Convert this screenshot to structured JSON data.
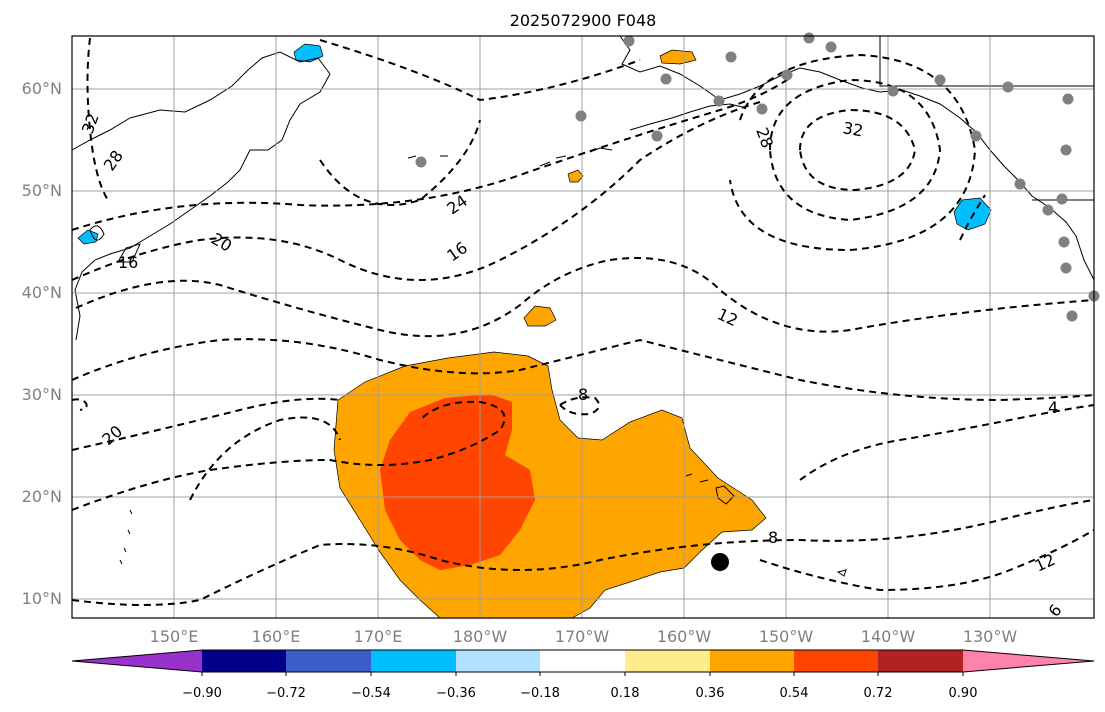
{
  "title": "2025072900 F048",
  "map": {
    "lat_ticks": [
      "10°N",
      "20°N",
      "30°N",
      "40°N",
      "50°N",
      "60°N"
    ],
    "lon_ticks": [
      "150°E",
      "160°E",
      "170°E",
      "180°W",
      "170°W",
      "160°W",
      "150°W",
      "140°W",
      "130°W"
    ],
    "contour_labels": [
      "32",
      "28",
      "24",
      "20",
      "16",
      "12",
      "8",
      "4",
      "16",
      "20",
      "12",
      "8",
      "28",
      "32",
      "12",
      "6"
    ],
    "colors": {
      "fill_orange": "#FFA500",
      "fill_red": "#FF4500",
      "fill_lightblue": "#00BFFF",
      "station_gray": "#808080"
    }
  },
  "colorbar": {
    "tick_labels": [
      "−0.90",
      "−0.72",
      "−0.54",
      "−0.36",
      "−0.18",
      "0.18",
      "0.36",
      "0.54",
      "0.72",
      "0.90"
    ],
    "colors": [
      "#9932CC",
      "#00008B",
      "#3A5FCD",
      "#00BFFF",
      "#B0E2FF",
      "#FFFFFF",
      "#FFEC8B",
      "#FFA500",
      "#FF4500",
      "#B22222",
      "#FF82AB"
    ]
  }
}
